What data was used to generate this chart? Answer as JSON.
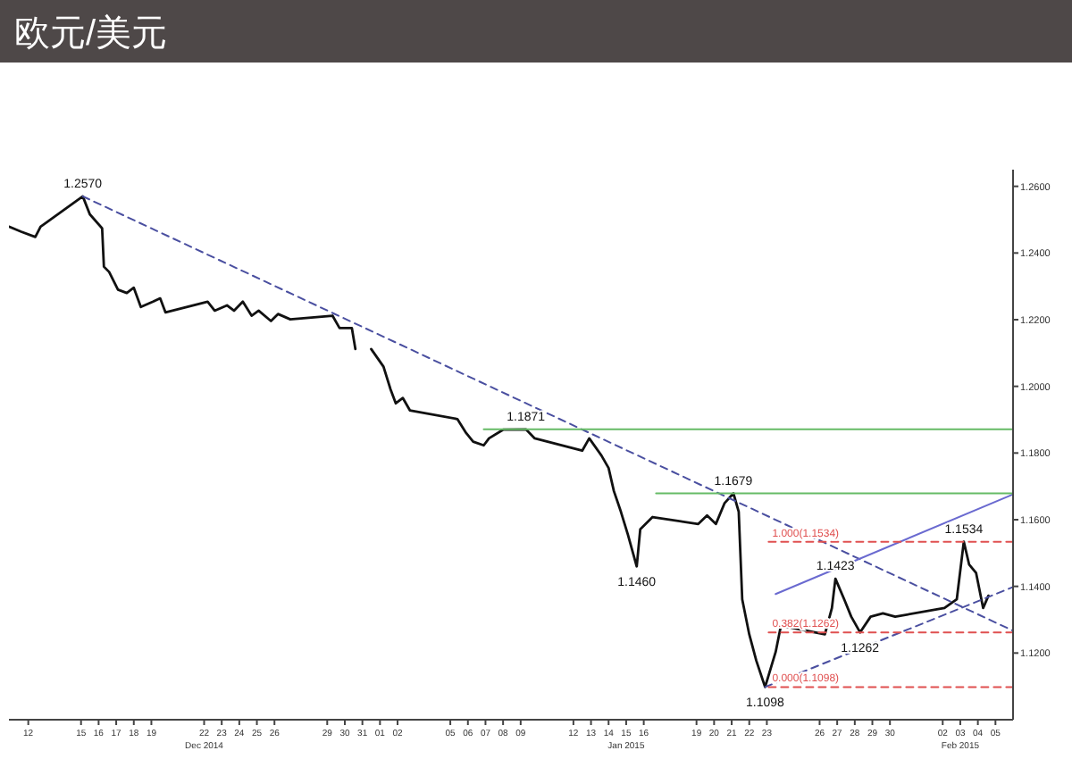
{
  "chart_data": {
    "type": "line",
    "title": "欧元/美元",
    "xlim": [
      "2014-12-10T21:36",
      "2015-02-06T00:00"
    ],
    "ylim": [
      1.1,
      1.265
    ],
    "yticks": [
      {
        "value": 1.12,
        "label": "1.1200"
      },
      {
        "value": 1.14,
        "label": "1.1400"
      },
      {
        "value": 1.16,
        "label": "1.1600"
      },
      {
        "value": 1.18,
        "label": "1.1800"
      },
      {
        "value": 1.2,
        "label": "1.2000"
      },
      {
        "value": 1.22,
        "label": "1.2200"
      },
      {
        "value": 1.24,
        "label": "1.2400"
      },
      {
        "value": 1.26,
        "label": "1.2600"
      }
    ],
    "xticks": [
      {
        "value": "2014-12-12",
        "label": "12"
      },
      {
        "value": "2014-12-15",
        "label": "15"
      },
      {
        "value": "2014-12-16",
        "label": "16"
      },
      {
        "value": "2014-12-17",
        "label": "17"
      },
      {
        "value": "2014-12-18",
        "label": "18"
      },
      {
        "value": "2014-12-19",
        "label": "19"
      },
      {
        "value": "2014-12-22",
        "label": "22"
      },
      {
        "value": "2014-12-23",
        "label": "23"
      },
      {
        "value": "2014-12-24",
        "label": "24"
      },
      {
        "value": "2014-12-25",
        "label": "25"
      },
      {
        "value": "2014-12-26",
        "label": "26"
      },
      {
        "value": "2014-12-29",
        "label": "29"
      },
      {
        "value": "2014-12-30",
        "label": "30"
      },
      {
        "value": "2014-12-31",
        "label": "31"
      },
      {
        "value": "2015-01-01",
        "label": "01"
      },
      {
        "value": "2015-01-02",
        "label": "02"
      },
      {
        "value": "2015-01-05",
        "label": "05"
      },
      {
        "value": "2015-01-06",
        "label": "06"
      },
      {
        "value": "2015-01-07",
        "label": "07"
      },
      {
        "value": "2015-01-08",
        "label": "08"
      },
      {
        "value": "2015-01-09",
        "label": "09"
      },
      {
        "value": "2015-01-12",
        "label": "12"
      },
      {
        "value": "2015-01-13",
        "label": "13"
      },
      {
        "value": "2015-01-14",
        "label": "14"
      },
      {
        "value": "2015-01-15",
        "label": "15"
      },
      {
        "value": "2015-01-16",
        "label": "16"
      },
      {
        "value": "2015-01-19",
        "label": "19"
      },
      {
        "value": "2015-01-20",
        "label": "20"
      },
      {
        "value": "2015-01-21",
        "label": "21"
      },
      {
        "value": "2015-01-22",
        "label": "22"
      },
      {
        "value": "2015-01-23",
        "label": "23"
      },
      {
        "value": "2015-01-26",
        "label": "26"
      },
      {
        "value": "2015-01-27",
        "label": "27"
      },
      {
        "value": "2015-01-28",
        "label": "28"
      },
      {
        "value": "2015-01-29",
        "label": "29"
      },
      {
        "value": "2015-01-30",
        "label": "30"
      },
      {
        "value": "2015-02-02",
        "label": "02"
      },
      {
        "value": "2015-02-03",
        "label": "03"
      },
      {
        "value": "2015-02-04",
        "label": "04"
      },
      {
        "value": "2015-02-05",
        "label": "05"
      }
    ],
    "grid": false,
    "series": [
      {
        "color": "#111111",
        "line_style": "solid",
        "x": [
          "2014-12-10T21:36",
          "2014-12-11T14:24",
          "2014-12-12T09:36",
          "2014-12-12T16:48",
          "2014-12-15T02:24",
          "2014-12-15T12:00",
          "2014-12-16T04:48",
          "2014-12-16T07:12",
          "2014-12-16T14:24",
          "2014-12-17T02:24",
          "2014-12-17T14:24",
          "2014-12-18T00:00",
          "2014-12-18T09:36",
          "2014-12-19T02:24",
          "2014-12-19T12:00",
          "2014-12-19T19:12",
          "2014-12-22T04:48",
          "2014-12-22T14:24",
          "2014-12-23T07:12",
          "2014-12-23T16:48",
          "2014-12-24T04:48",
          "2014-12-24T16:48",
          "2014-12-25T02:24",
          "2014-12-25T19:12",
          "2014-12-26T04:48",
          "2014-12-26T21:36",
          "2014-12-29T07:12",
          "2014-12-29T16:48",
          "2014-12-30T09:36",
          "2014-12-30T14:24",
          "2014-12-31T02:24",
          "2014-12-31T12:00",
          "2015-01-01T04:48",
          "2015-01-01T14:24",
          "2015-01-01T21:36",
          "2015-01-02T07:12",
          "2015-01-02T16:48",
          "2015-01-05T09:36",
          "2015-01-05T21:36",
          "2015-01-06T07:12",
          "2015-01-06T21:36",
          "2015-01-07T04:48",
          "2015-01-08T00:00",
          "2015-01-09T07:12",
          "2015-01-09T19:12",
          "2015-01-12T12:00",
          "2015-01-12T21:36",
          "2015-01-13T14:24",
          "2015-01-14T00:00",
          "2015-01-14T07:12",
          "2015-01-14T16:48",
          "2015-01-15T02:24",
          "2015-01-15T14:24",
          "2015-01-15T19:12",
          "2015-01-16T12:00",
          "2015-01-19T02:24",
          "2015-01-19T14:24",
          "2015-01-20T02:24",
          "2015-01-20T14:24",
          "2015-01-21T02:24",
          "2015-01-21T09:36",
          "2015-01-21T14:24",
          "2015-01-22T00:00",
          "2015-01-22T09:36",
          "2015-01-22T21:36",
          "2015-01-23T12:00",
          "2015-01-23T19:12",
          "2015-01-26T07:12",
          "2015-01-26T16:48",
          "2015-01-26T21:36",
          "2015-01-27T09:36",
          "2015-01-27T19:12",
          "2015-01-28T07:12",
          "2015-01-28T21:36",
          "2015-01-29T14:24",
          "2015-01-30T07:12",
          "2015-02-02T02:24",
          "2015-02-02T19:12",
          "2015-02-03T04:48",
          "2015-02-03T12:00",
          "2015-02-03T21:36",
          "2015-02-04T07:12",
          "2015-02-04T14:24"
        ],
        "values": [
          1.2479,
          1.2464,
          1.2448,
          1.2479,
          1.257,
          1.2516,
          1.2474,
          1.2359,
          1.2343,
          1.229,
          1.228,
          1.2296,
          1.2238,
          1.2254,
          1.2264,
          1.2222,
          1.2254,
          1.2227,
          1.2243,
          1.2227,
          1.2254,
          1.2212,
          1.2227,
          1.2196,
          1.2217,
          1.2201,
          1.2212,
          1.2175,
          1.2175,
          1.2112,
          null,
          1.2112,
          1.2059,
          1.1991,
          1.1949,
          1.1965,
          1.1928,
          1.1902,
          1.186,
          1.1834,
          1.1823,
          1.1844,
          1.187,
          1.1871,
          1.1844,
          1.1807,
          1.1844,
          1.1792,
          1.1755,
          1.1686,
          1.1624,
          1.1555,
          1.146,
          1.1571,
          1.1608,
          1.1587,
          1.1613,
          1.1587,
          1.165,
          1.1679,
          1.1624,
          1.1361,
          1.1256,
          1.1177,
          1.1098,
          1.1203,
          1.1282,
          1.1256,
          1.1335,
          1.1423,
          1.1361,
          1.1309,
          1.1262,
          1.1309,
          1.1319,
          1.1309,
          1.1335,
          1.1361,
          1.1534,
          1.1466,
          1.144,
          1.1335,
          1.1372
        ]
      },
      {
        "color": "#4a4fa0",
        "line_style": "dashed",
        "x": [
          "2014-12-15T02:24",
          "2015-02-06T00:00"
        ],
        "values": [
          1.257,
          1.1267
        ]
      },
      {
        "color": "#4a4fa0",
        "line_style": "dashed",
        "x": [
          "2015-01-22T21:36",
          "2015-02-06T00:00"
        ],
        "values": [
          1.1098,
          1.1398
        ]
      },
      {
        "color": "#6a6ad0",
        "line_style": "solid",
        "x": [
          "2015-01-23T12:00",
          "2015-02-06T00:00"
        ],
        "values": [
          1.1377,
          1.1676
        ]
      },
      {
        "color": "#66bb66",
        "line_style": "solid",
        "x": [
          "2015-01-06T21:36",
          "2015-02-06T00:00"
        ],
        "values": [
          1.1871,
          1.1871
        ]
      },
      {
        "color": "#66bb66",
        "line_style": "solid",
        "x": [
          "2015-01-16T16:48",
          "2015-02-06T00:00"
        ],
        "values": [
          1.1679,
          1.1679
        ]
      },
      {
        "name": "1.000(1.1534)",
        "color": "#e05050",
        "line_style": "dashed",
        "x": [
          "2015-01-23T02:24",
          "2015-02-06T00:00"
        ],
        "values": [
          1.1534,
          1.1534
        ]
      },
      {
        "name": "0.382(1.1262)",
        "color": "#e05050",
        "line_style": "dashed",
        "x": [
          "2015-01-23T02:24",
          "2015-02-06T00:00"
        ],
        "values": [
          1.1262,
          1.1262
        ]
      },
      {
        "name": "0.000(1.1098)",
        "color": "#e05050",
        "line_style": "dashed",
        "x": [
          "2015-01-23T02:24",
          "2015-02-06T00:00"
        ],
        "values": [
          1.1098,
          1.1098
        ]
      }
    ],
    "annotations": [
      "Dec 2014",
      "Jan 2015",
      "Feb 2015",
      {
        "text": "1.2570",
        "x": "2014-12-15T02:24",
        "y": 1.257
      },
      {
        "text": "1.1871",
        "x": "2015-01-09T07:12",
        "y": 1.1871
      },
      {
        "text": "1.1460",
        "x": "2015-01-15T14:24",
        "y": 1.146
      },
      {
        "text": "1.1679",
        "x": "2015-01-21T02:24",
        "y": 1.1679
      },
      {
        "text": "1.1098",
        "x": "2015-01-22T21:36",
        "y": 1.1098
      },
      {
        "text": "1.1423",
        "x": "2015-01-26T21:36",
        "y": 1.1423
      },
      {
        "text": "1.1262",
        "x": "2015-01-28T07:12",
        "y": 1.1262
      },
      {
        "text": "1.1534",
        "x": "2015-02-03T04:48",
        "y": 1.1534
      }
    ]
  }
}
